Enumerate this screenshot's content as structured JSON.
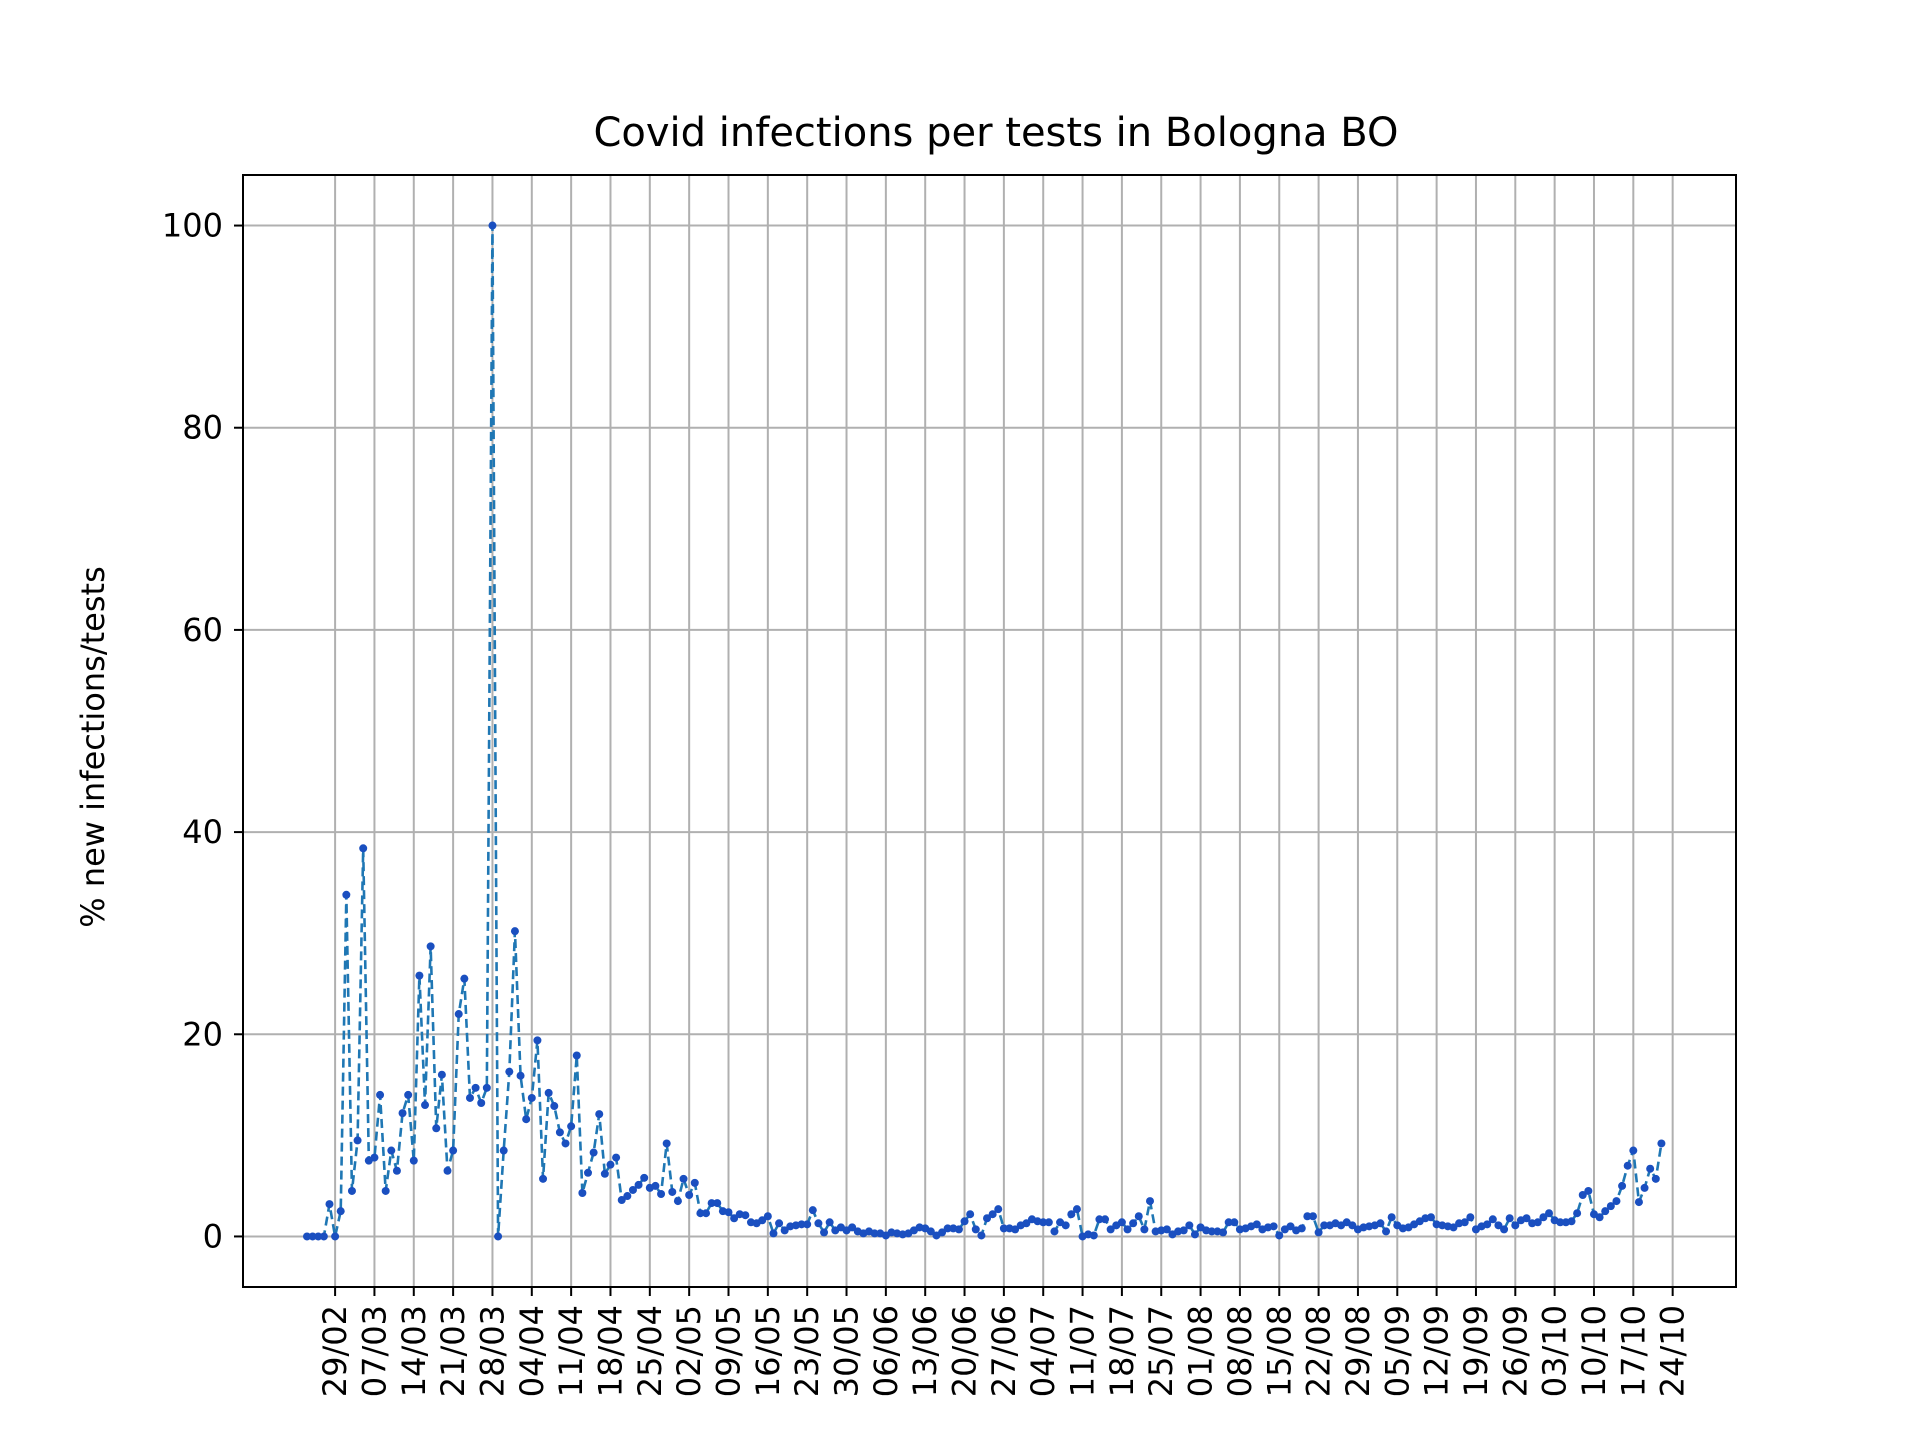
{
  "chart_data": {
    "type": "line",
    "title": "Covid infections per tests in Bologna BO",
    "xlabel": "",
    "ylabel": "% new infections/tests",
    "ylim": [
      -5,
      105
    ],
    "yticks": [
      0,
      20,
      40,
      60,
      80,
      100
    ],
    "x_start": "24/02",
    "xticks": [
      "29/02",
      "07/03",
      "14/03",
      "21/03",
      "28/03",
      "04/04",
      "11/04",
      "18/04",
      "25/04",
      "02/05",
      "09/05",
      "16/05",
      "23/05",
      "30/05",
      "06/06",
      "13/06",
      "20/06",
      "27/06",
      "04/07",
      "11/07",
      "18/07",
      "25/07",
      "01/08",
      "08/08",
      "15/08",
      "22/08",
      "29/08",
      "05/09",
      "12/09",
      "19/09",
      "26/09",
      "03/10",
      "10/10",
      "17/10",
      "24/10"
    ],
    "grid": true,
    "line_style": "dashed",
    "marker": "point",
    "color": "#1f77b4",
    "marker_color": "#1a4fc0",
    "series": [
      {
        "values": [
          0,
          0,
          0,
          0,
          3.2,
          0,
          2.5,
          33.8,
          4.5,
          9.5,
          38.4,
          7.5,
          7.8,
          14,
          4.5,
          8.5,
          6.5,
          12.2,
          14,
          7.5,
          25.8,
          13,
          28.7,
          10.7,
          16,
          6.5,
          8.5,
          22,
          25.5,
          13.7,
          14.7,
          13.2,
          14.7,
          100,
          0,
          8.5,
          16.3,
          30.2,
          15.9,
          11.6,
          13.7,
          19.4,
          5.7,
          14.2,
          12.9,
          10.3,
          9.2,
          10.9,
          17.9,
          4.3,
          6.3,
          8.3,
          12.1,
          6.2,
          7.1,
          7.8,
          3.6,
          4,
          4.6,
          5.1,
          5.8,
          4.8,
          5,
          4.2,
          9.2,
          4.4,
          3.5,
          5.7,
          4.1,
          5.3,
          2.3,
          2.3,
          3.3,
          3.3,
          2.5,
          2.4,
          1.8,
          2.2,
          2.1,
          1.4,
          1.3,
          1.6,
          2,
          0.3,
          1.3,
          0.6,
          1,
          1.1,
          1.2,
          1.2,
          2.6,
          1.3,
          0.4,
          1.4,
          0.6,
          0.9,
          0.6,
          0.9,
          0.5,
          0.3,
          0.5,
          0.3,
          0.3,
          0.1,
          0.4,
          0.3,
          0.2,
          0.3,
          0.6,
          0.9,
          0.8,
          0.5,
          0.1,
          0.4,
          0.8,
          0.8,
          0.7,
          1.5,
          2.2,
          0.7,
          0.1,
          1.8,
          2.2,
          2.7,
          0.8,
          0.8,
          0.7,
          1.1,
          1.3,
          1.7,
          1.5,
          1.4,
          1.4,
          0.5,
          1.4,
          1.1,
          2.2,
          2.7,
          0,
          0.2,
          0.1,
          1.7,
          1.7,
          0.7,
          1.1,
          1.4,
          0.7,
          1.3,
          2,
          0.7,
          3.5,
          0.5,
          0.6,
          0.7,
          0.2,
          0.5,
          0.6,
          1.1,
          0.2,
          0.9,
          0.6,
          0.5,
          0.5,
          0.4,
          1.4,
          1.4,
          0.7,
          0.8,
          1,
          1.2,
          0.7,
          0.9,
          1,
          0.1,
          0.7,
          1,
          0.6,
          0.8,
          2,
          2,
          0.4,
          1.1,
          1.1,
          1.3,
          1.1,
          1.4,
          1.1,
          0.7,
          0.9,
          1,
          1.1,
          1.3,
          0.5,
          1.9,
          1.1,
          0.8,
          0.9,
          1.2,
          1.5,
          1.8,
          1.9,
          1.2,
          1.1,
          1,
          0.9,
          1.3,
          1.4,
          1.9,
          0.7,
          1,
          1.2,
          1.7,
          1.1,
          0.7,
          1.8,
          1.1,
          1.6,
          1.8,
          1.3,
          1.4,
          1.9,
          2.3,
          1.6,
          1.4,
          1.4,
          1.5,
          2.3,
          4.1,
          4.5,
          2.2,
          1.9,
          2.5,
          3,
          3.5,
          5,
          7,
          8.5,
          3.4,
          4.8,
          6.7,
          5.7,
          9.2
        ]
      }
    ]
  }
}
